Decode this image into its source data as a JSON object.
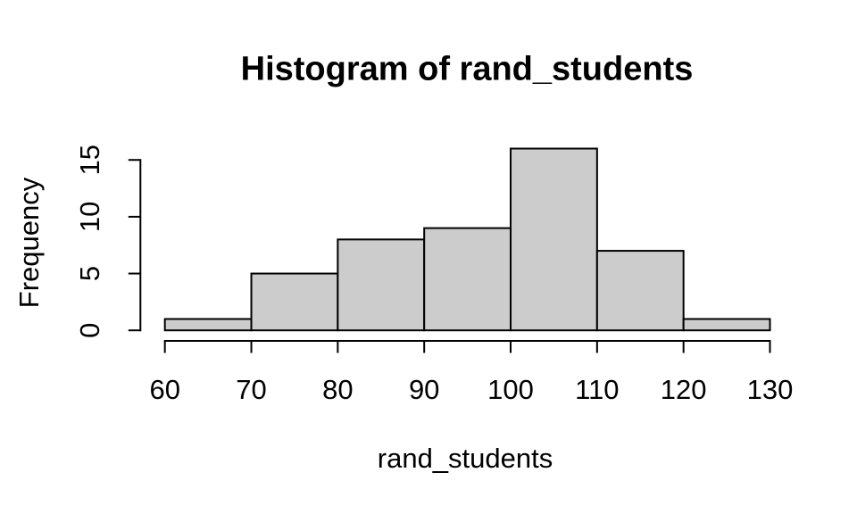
{
  "chart_data": {
    "type": "bar",
    "subtype": "histogram",
    "title": "Histogram of rand_students",
    "xlabel": "rand_students",
    "ylabel": "Frequency",
    "breaks": [
      60,
      70,
      80,
      90,
      100,
      110,
      120,
      130
    ],
    "counts": [
      1,
      5,
      8,
      9,
      16,
      7,
      1
    ],
    "x_ticks": [
      60,
      70,
      80,
      90,
      100,
      110,
      120,
      130
    ],
    "y_ticks": [
      0,
      5,
      10,
      15
    ],
    "xlim": [
      60,
      130
    ],
    "ylim": [
      0,
      16
    ],
    "grid": "off",
    "legend": "none",
    "bar_fill": "#CCCCCC",
    "bar_border": "#000000",
    "axis_color": "#000000",
    "background": "#FFFFFF"
  }
}
